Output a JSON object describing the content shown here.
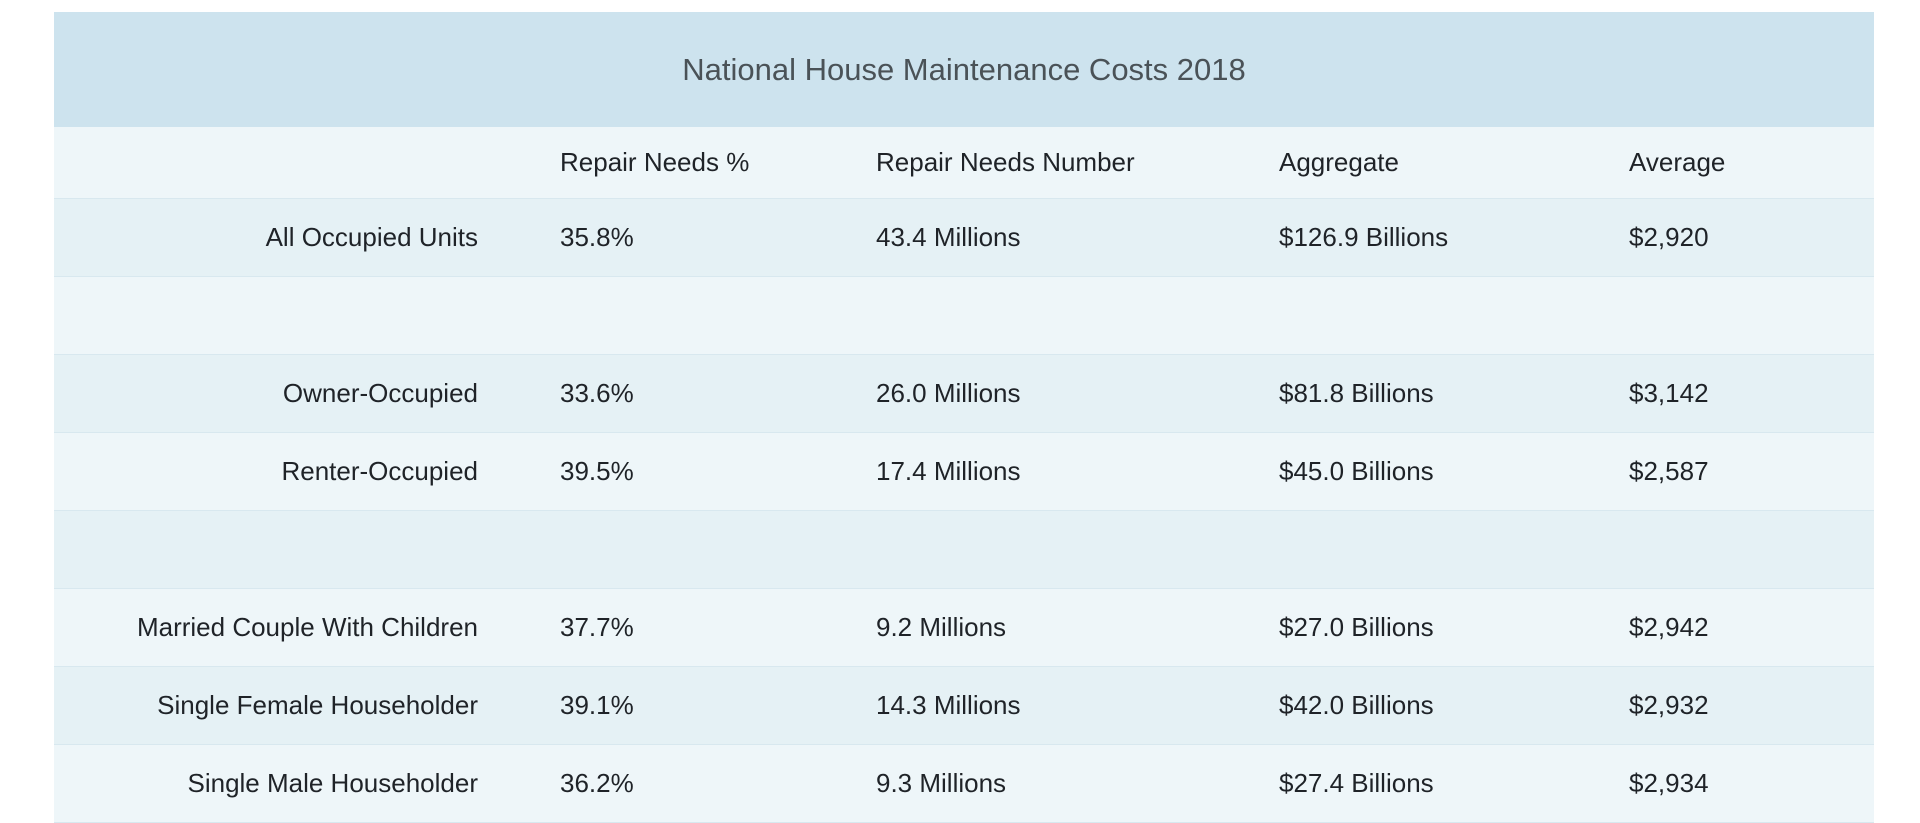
{
  "chart_data": {
    "type": "table",
    "title": "National House Maintenance Costs 2018",
    "columns": [
      "",
      "Repair Needs %",
      "Repair Needs Number",
      "Aggregate",
      "Average"
    ],
    "rows": [
      [
        "All Occupied Units",
        "35.8%",
        "43.4 Millions",
        "$126.9 Billions",
        "$2,920"
      ],
      [
        "",
        "",
        "",
        "",
        ""
      ],
      [
        "Owner-Occupied",
        "33.6%",
        "26.0 Millions",
        "$81.8 Billions",
        "$3,142"
      ],
      [
        "Renter-Occupied",
        "39.5%",
        "17.4 Millions",
        "$45.0 Billions",
        "$2,587"
      ],
      [
        "",
        "",
        "",
        "",
        ""
      ],
      [
        "Married Couple With Children",
        "37.7%",
        "9.2 Millions",
        "$27.0 Billions",
        "$2,942"
      ],
      [
        "Single Female Householder",
        "39.1%",
        "14.3 Millions",
        "$42.0 Billions",
        "$2,932"
      ],
      [
        "Single Male Householder",
        "36.2%",
        "9.3 Millions",
        "$27.4 Billions",
        "$2,934"
      ]
    ],
    "colors": {
      "title_background": "#cde3ee",
      "row_light": "#eef6f9",
      "row_dark": "#e5f1f5"
    }
  }
}
